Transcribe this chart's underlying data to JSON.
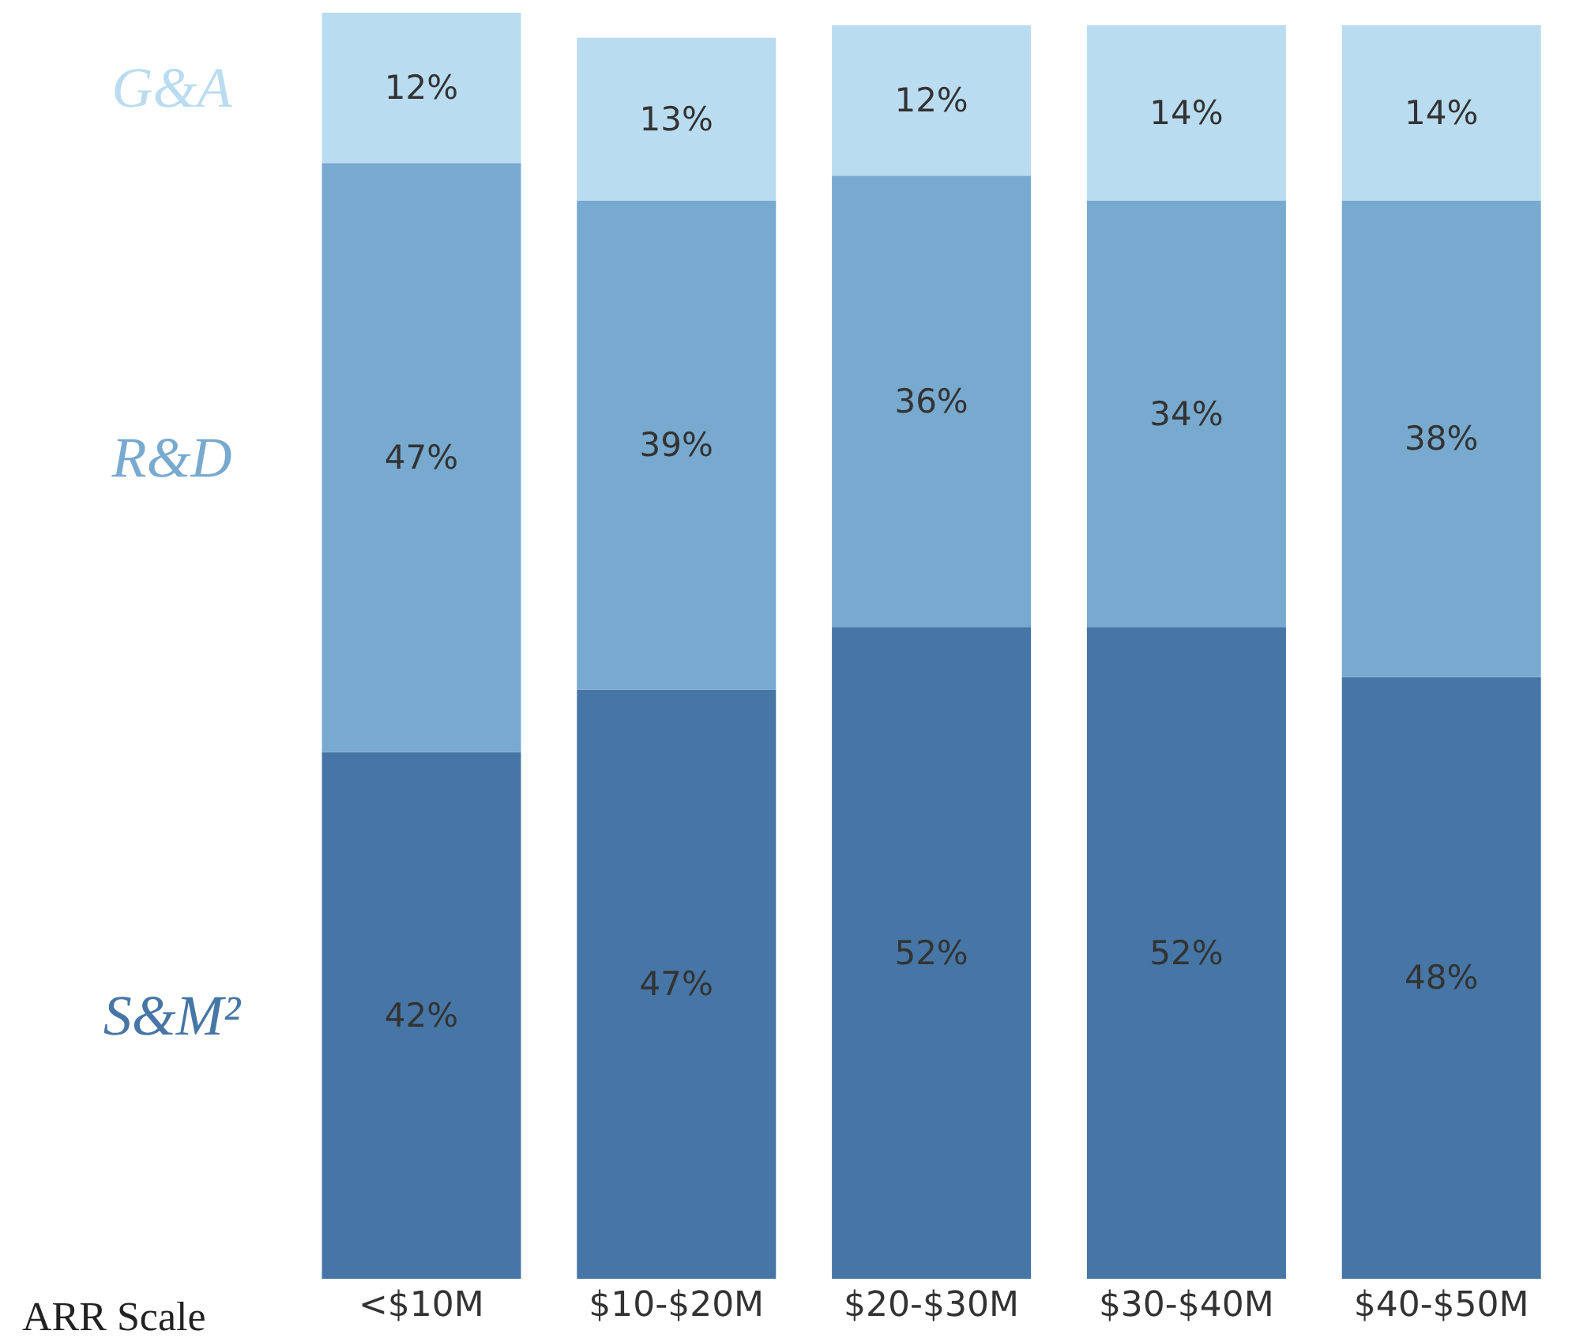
{
  "chart_data": {
    "type": "bar",
    "stacked": true,
    "xlabel": "ARR Scale",
    "categories": [
      "<$10M",
      "$10-$20M",
      "$20-$30M",
      "$30-$40M",
      "$40-$50M"
    ],
    "series": [
      {
        "name": "S&M²",
        "color": "#4676a5",
        "values": [
          42,
          47,
          52,
          52,
          48
        ],
        "value_labels": [
          "42%",
          "47%",
          "52%",
          "52%",
          "48%"
        ]
      },
      {
        "name": "R&D",
        "color": "#78a9cf",
        "values": [
          47,
          39,
          36,
          34,
          38
        ],
        "value_labels": [
          "47%",
          "39%",
          "36%",
          "34%",
          "38%"
        ]
      },
      {
        "name": "G&A",
        "color": "#badcf0",
        "values": [
          12,
          13,
          12,
          14,
          14
        ],
        "value_labels": [
          "12%",
          "13%",
          "12%",
          "14%",
          "14%"
        ]
      }
    ],
    "tick_labels": "x"
  }
}
